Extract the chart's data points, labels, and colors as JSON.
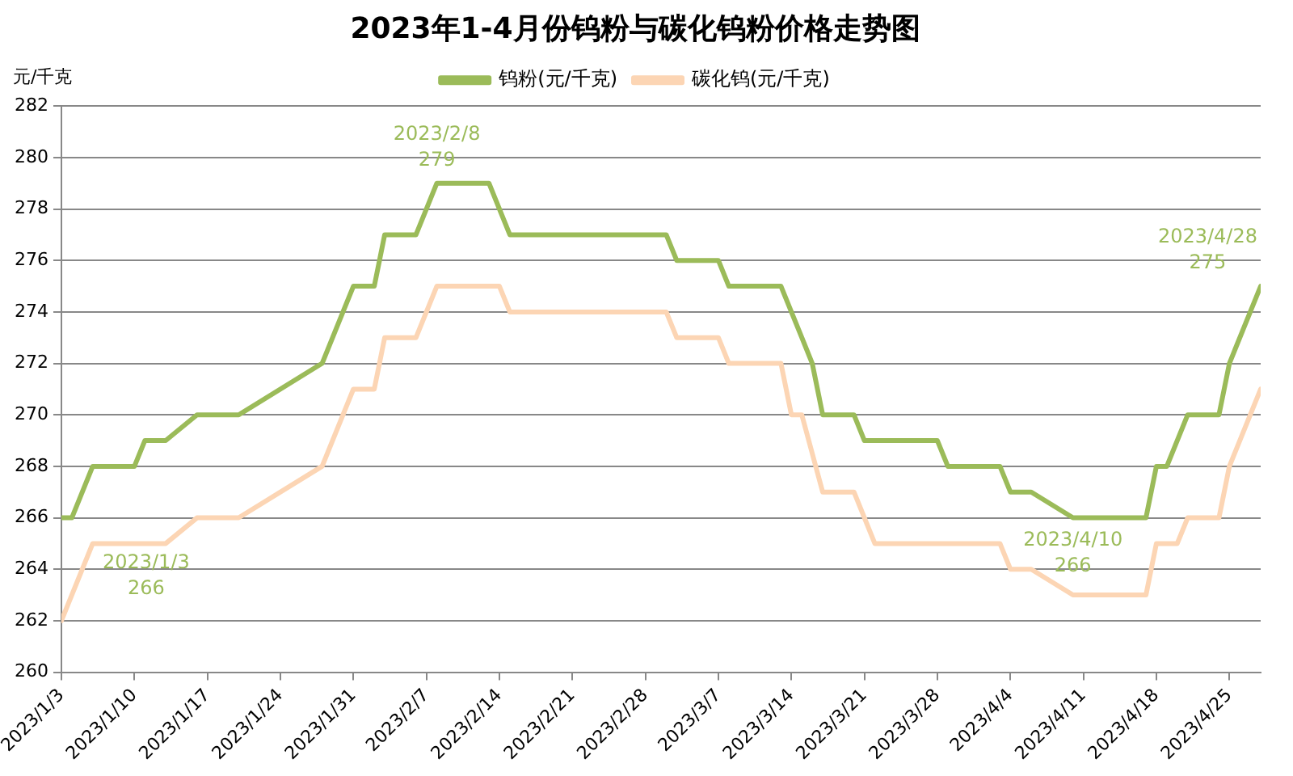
{
  "chart_data": {
    "type": "line",
    "title": "2023年1-4月份钨粉与碳化钨粉价格走势图",
    "ylabel": "元/千克",
    "series": [
      {
        "name": "钨粉(元/千克)",
        "color": "#9bbb59",
        "x": [
          "2023-01-03",
          "2023-01-04",
          "2023-01-06",
          "2023-01-10",
          "2023-01-11",
          "2023-01-13",
          "2023-01-16",
          "2023-01-20",
          "2023-01-28",
          "2023-01-30",
          "2023-01-31",
          "2023-02-02",
          "2023-02-03",
          "2023-02-06",
          "2023-02-08",
          "2023-02-13",
          "2023-02-15",
          "2023-03-02",
          "2023-03-03",
          "2023-03-07",
          "2023-03-08",
          "2023-03-13",
          "2023-03-14",
          "2023-03-15",
          "2023-03-16",
          "2023-03-17",
          "2023-03-20",
          "2023-03-21",
          "2023-03-28",
          "2023-03-29",
          "2023-04-03",
          "2023-04-04",
          "2023-04-06",
          "2023-04-10",
          "2023-04-17",
          "2023-04-18",
          "2023-04-19",
          "2023-04-21",
          "2023-04-24",
          "2023-04-25",
          "2023-04-28"
        ],
        "values": [
          266,
          266,
          268,
          268,
          269,
          269,
          270,
          270,
          272,
          274,
          275,
          275,
          277,
          277,
          279,
          279,
          277,
          277,
          276,
          276,
          275,
          275,
          274,
          273,
          272,
          270,
          270,
          269,
          269,
          268,
          268,
          267,
          267,
          266,
          266,
          268,
          268,
          270,
          270,
          272,
          275
        ]
      },
      {
        "name": "碳化钨(元/千克)",
        "color": "#fcd5b4",
        "x": [
          "2023-01-03",
          "2023-01-06",
          "2023-01-13",
          "2023-01-16",
          "2023-01-20",
          "2023-01-28",
          "2023-01-31",
          "2023-02-02",
          "2023-02-03",
          "2023-02-06",
          "2023-02-08",
          "2023-02-14",
          "2023-02-15",
          "2023-03-02",
          "2023-03-03",
          "2023-03-07",
          "2023-03-08",
          "2023-03-13",
          "2023-03-14",
          "2023-03-15",
          "2023-03-17",
          "2023-03-20",
          "2023-03-22",
          "2023-04-03",
          "2023-04-04",
          "2023-04-06",
          "2023-04-10",
          "2023-04-17",
          "2023-04-18",
          "2023-04-20",
          "2023-04-21",
          "2023-04-24",
          "2023-04-25",
          "2023-04-28"
        ],
        "values": [
          262,
          265,
          265,
          266,
          266,
          268,
          271,
          271,
          273,
          273,
          275,
          275,
          274,
          274,
          273,
          273,
          272,
          272,
          270,
          270,
          267,
          267,
          265,
          265,
          264,
          264,
          263,
          263,
          265,
          265,
          266,
          266,
          268,
          271
        ]
      }
    ],
    "annotations": [
      {
        "text": "2023/1/3\n266",
        "x": "2023-01-03",
        "y": 266
      },
      {
        "text": "2023/2/8\n279",
        "x": "2023-02-08",
        "y": 279
      },
      {
        "text": "2023/4/10\n266",
        "x": "2023-04-10",
        "y": 266
      },
      {
        "text": "2023/4/28\n275",
        "x": "2023-04-28",
        "y": 275
      }
    ],
    "xlim": [
      "2023-01-03",
      "2023-04-28"
    ],
    "xticks": [
      {
        "value": "2023-01-03",
        "label": "2023/1/3"
      },
      {
        "value": "2023-01-10",
        "label": "2023/1/10"
      },
      {
        "value": "2023-01-17",
        "label": "2023/1/17"
      },
      {
        "value": "2023-01-24",
        "label": "2023/1/24"
      },
      {
        "value": "2023-01-31",
        "label": "2023/1/31"
      },
      {
        "value": "2023-02-07",
        "label": "2023/2/7"
      },
      {
        "value": "2023-02-14",
        "label": "2023/2/14"
      },
      {
        "value": "2023-02-21",
        "label": "2023/2/21"
      },
      {
        "value": "2023-02-28",
        "label": "2023/2/28"
      },
      {
        "value": "2023-03-07",
        "label": "2023/3/7"
      },
      {
        "value": "2023-03-14",
        "label": "2023/3/14"
      },
      {
        "value": "2023-03-21",
        "label": "2023/3/21"
      },
      {
        "value": "2023-03-28",
        "label": "2023/3/28"
      },
      {
        "value": "2023-04-04",
        "label": "2023/4/4"
      },
      {
        "value": "2023-04-11",
        "label": "2023/4/11"
      },
      {
        "value": "2023-04-18",
        "label": "2023/4/18"
      },
      {
        "value": "2023-04-25",
        "label": "2023/4/25"
      }
    ],
    "ylim": [
      260,
      282
    ],
    "yticks": [
      260,
      262,
      264,
      266,
      268,
      270,
      272,
      274,
      276,
      278,
      280,
      282
    ],
    "grid": "y",
    "legend": "top",
    "marker": "none",
    "line_style": "solid"
  }
}
